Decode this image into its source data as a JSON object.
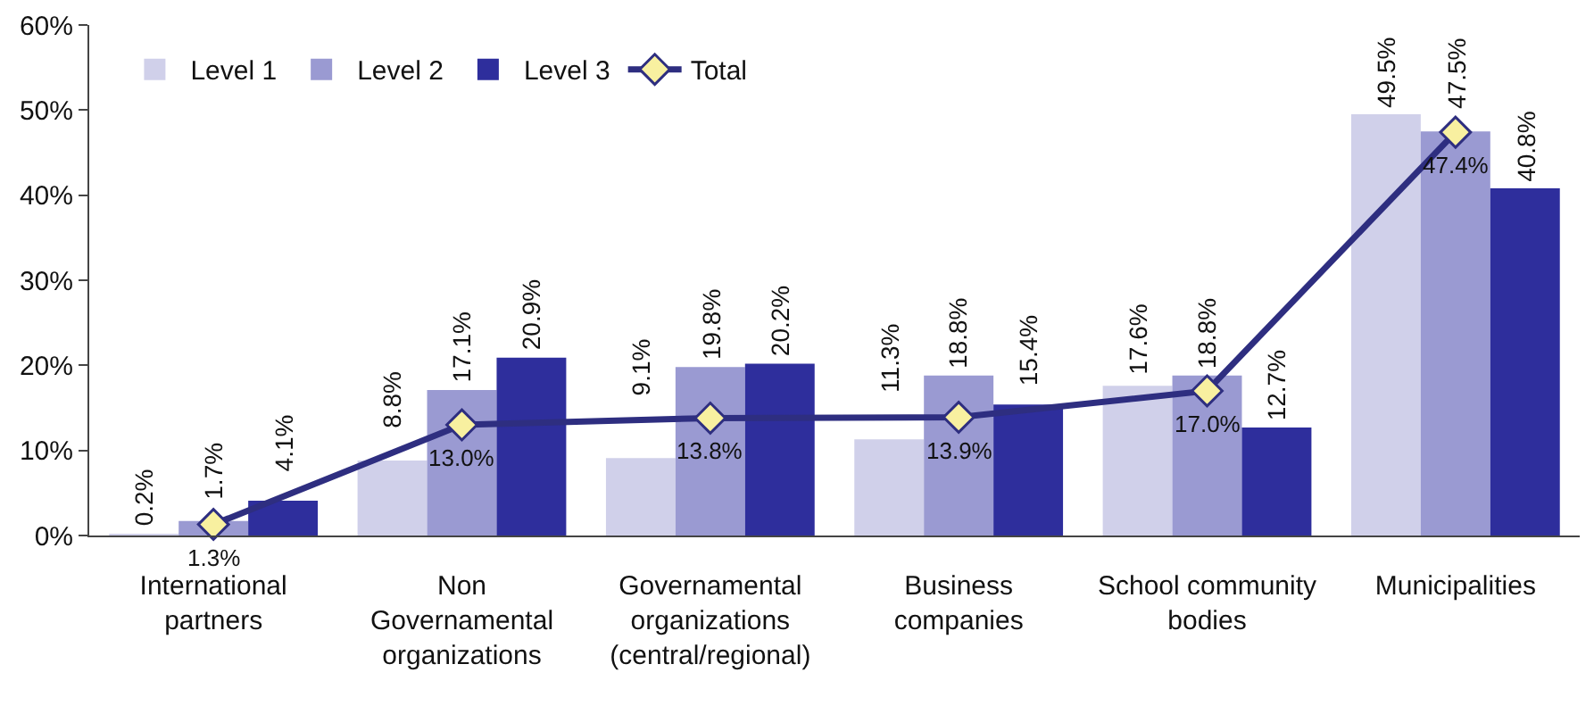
{
  "chart_data": {
    "type": "bar",
    "categories": [
      "International\npartners",
      "Non\nGovernamental\norganizations",
      "Governamental\norganizations\n(central/regional)",
      "Business\ncompanies",
      "School community\nbodies",
      "Municipalities"
    ],
    "series": [
      {
        "name": "Level 1",
        "color": "#d0d0ea",
        "values": [
          0.2,
          8.8,
          9.1,
          11.3,
          17.6,
          49.5
        ],
        "value_labels": [
          "0.2%",
          "8.8%",
          "9.1%",
          "11.3%",
          "17.6%",
          "49.5%"
        ]
      },
      {
        "name": "Level 2",
        "color": "#9a9ad2",
        "values": [
          1.7,
          17.1,
          19.8,
          18.8,
          18.8,
          47.5
        ],
        "value_labels": [
          "1.7%",
          "17.1%",
          "19.8%",
          "18.8%",
          "18.8%",
          "47.5%"
        ]
      },
      {
        "name": "Level 3",
        "color": "#2e2e9c",
        "values": [
          4.1,
          20.9,
          20.2,
          15.4,
          12.7,
          40.8
        ],
        "value_labels": [
          "4.1%",
          "20.9%",
          "20.2%",
          "15.4%",
          "12.7%",
          "40.8%"
        ]
      },
      {
        "name": "Total",
        "type": "line",
        "color": "#2e2e80",
        "values": [
          1.3,
          13.0,
          13.8,
          13.9,
          17.0,
          47.4
        ],
        "value_labels": [
          "1.3%",
          "13.0%",
          "13.8%",
          "13.9%",
          "17.0%",
          "47.4%"
        ]
      }
    ],
    "ylim": [
      0,
      60
    ],
    "yticks": [
      {
        "value": 0,
        "label": "0%"
      },
      {
        "value": 10,
        "label": "10%"
      },
      {
        "value": 20,
        "label": "20%"
      },
      {
        "value": 30,
        "label": "30%"
      },
      {
        "value": 40,
        "label": "40%"
      },
      {
        "value": 50,
        "label": "50%"
      },
      {
        "value": 60,
        "label": "60%"
      }
    ],
    "grid": false,
    "legend": "top left",
    "marker": "diamond",
    "line_style": "solid"
  }
}
